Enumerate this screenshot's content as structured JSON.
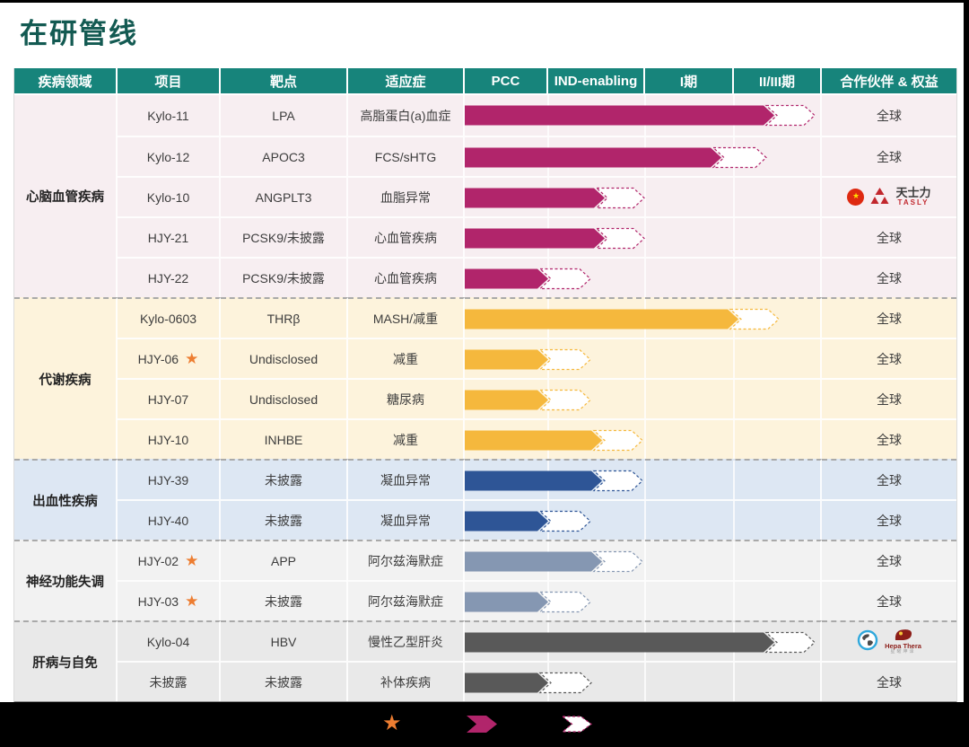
{
  "title": "在研管线",
  "theme": {
    "header_bg": "#17847b",
    "title_color": "#135a52",
    "star_color": "#ED7D31",
    "legend_arrow_color": "#b1256b",
    "bottom_bar_color": "#000000"
  },
  "table": {
    "columns": [
      "疾病领域",
      "项目",
      "靶点",
      "适应症",
      "PCC",
      "IND-enabling",
      "I期",
      "II/III期",
      "合作伙伴 & 权益"
    ],
    "groups": [
      {
        "name": "心脑血管疾病",
        "bg": "#f7eef1",
        "bar_color": "#b1256b",
        "rows": [
          {
            "project": "Kylo-11",
            "star": false,
            "target": "LPA",
            "indication": "高脂蛋白(a)血症",
            "bar": {
              "solid": 345,
              "dashed": 390
            },
            "partner": {
              "type": "text",
              "text": "全球"
            }
          },
          {
            "project": "Kylo-12",
            "star": false,
            "target": "APOC3",
            "indication": "FCS/sHTG",
            "bar": {
              "solid": 286,
              "dashed": 336
            },
            "partner": {
              "type": "text",
              "text": "全球"
            }
          },
          {
            "project": "Kylo-10",
            "star": false,
            "target": "ANGPLT3",
            "indication": "血脂异常",
            "bar": {
              "solid": 156,
              "dashed": 200
            },
            "partner": {
              "type": "tasly",
              "flag": "china-flag-icon",
              "cn": "天士力",
              "en": "TASLY"
            }
          },
          {
            "project": "HJY-21",
            "star": false,
            "target": "PCSK9/未披露",
            "indication": "心血管疾病",
            "bar": {
              "solid": 156,
              "dashed": 200
            },
            "partner": {
              "type": "text",
              "text": "全球"
            }
          },
          {
            "project": "HJY-22",
            "star": false,
            "target": "PCSK9/未披露",
            "indication": "心血管疾病",
            "bar": {
              "solid": 93,
              "dashed": 140
            },
            "partner": {
              "type": "text",
              "text": "全球"
            }
          }
        ]
      },
      {
        "name": "代谢疾病",
        "bg": "#fdf3dc",
        "bar_color": "#f5b83d",
        "rows": [
          {
            "project": "Kylo-0603",
            "star": false,
            "target": "THRβ",
            "indication": "MASH/减重",
            "bar": {
              "solid": 305,
              "dashed": 350
            },
            "partner": {
              "type": "text",
              "text": "全球"
            }
          },
          {
            "project": "HJY-06",
            "star": true,
            "target": "Undisclosed",
            "indication": "减重",
            "bar": {
              "solid": 93,
              "dashed": 140
            },
            "partner": {
              "type": "text",
              "text": "全球"
            }
          },
          {
            "project": "HJY-07",
            "star": false,
            "target": "Undisclosed",
            "indication": "糖尿病",
            "bar": {
              "solid": 93,
              "dashed": 140
            },
            "partner": {
              "type": "text",
              "text": "全球"
            }
          },
          {
            "project": "HJY-10",
            "star": false,
            "target": "INHBE",
            "indication": "减重",
            "bar": {
              "solid": 153,
              "dashed": 198
            },
            "partner": {
              "type": "text",
              "text": "全球"
            }
          }
        ]
      },
      {
        "name": "出血性疾病",
        "bg": "#dde7f3",
        "bar_color": "#2e5596",
        "rows": [
          {
            "project": "HJY-39",
            "star": false,
            "target": "未披露",
            "indication": "凝血异常",
            "bar": {
              "solid": 153,
              "dashed": 198
            },
            "partner": {
              "type": "text",
              "text": "全球"
            }
          },
          {
            "project": "HJY-40",
            "star": false,
            "target": "未披露",
            "indication": "凝血异常",
            "bar": {
              "solid": 93,
              "dashed": 140
            },
            "partner": {
              "type": "text",
              "text": "全球"
            }
          }
        ]
      },
      {
        "name": "神经功能失调",
        "bg": "#f2f2f2",
        "bar_color": "#8597b2",
        "rows": [
          {
            "project": "HJY-02",
            "star": true,
            "target": "APP",
            "indication": "阿尔兹海默症",
            "bar": {
              "solid": 153,
              "dashed": 198
            },
            "partner": {
              "type": "text",
              "text": "全球"
            }
          },
          {
            "project": "HJY-03",
            "star": true,
            "target": "未披露",
            "indication": "阿尔兹海默症",
            "bar": {
              "solid": 93,
              "dashed": 140
            },
            "partner": {
              "type": "text",
              "text": "全球"
            }
          }
        ]
      },
      {
        "name": "肝病与自免",
        "bg": "#e9e9e9",
        "bar_color": "#595959",
        "rows": [
          {
            "project": "Kylo-04",
            "star": false,
            "target": "HBV",
            "indication": "慢性乙型肝炎",
            "bar": {
              "solid": 345,
              "dashed": 390
            },
            "partner": {
              "type": "hepathera",
              "globe": "globe-icon",
              "name": "Hepa Thera",
              "cn": "星曜坤泽"
            }
          },
          {
            "project": "未披露",
            "star": false,
            "target": "未披露",
            "indication": "补体疾病",
            "bar": {
              "solid": 93,
              "dashed": 141
            },
            "partner": {
              "type": "text",
              "text": "全球"
            }
          }
        ]
      }
    ]
  },
  "legend": {
    "star_glyph": "★",
    "items": [
      "star-icon",
      "solid-arrow-icon",
      "dashed-arrow-icon"
    ]
  },
  "chart_data": {
    "type": "bar",
    "title": "在研管线",
    "stage_axis": [
      "PCC",
      "IND-enabling",
      "I期",
      "II/III期"
    ],
    "stage_units_note": "0=start of PCC, 1=PCC done, 2=IND-enabling done, 3=Phase I done, 4=Phase II/III done; solid = achieved progress, dashed = planned/ongoing extension",
    "rows": [
      {
        "project": "Kylo-11",
        "group": "心脑血管疾病",
        "solid_end_stage": 3.45,
        "dashed_end_stage": 3.92
      },
      {
        "project": "Kylo-12",
        "group": "心脑血管疾病",
        "solid_end_stage": 2.86,
        "dashed_end_stage": 3.37
      },
      {
        "project": "Kylo-10",
        "group": "心脑血管疾病",
        "solid_end_stage": 1.58,
        "dashed_end_stage": 2.0
      },
      {
        "project": "HJY-21",
        "group": "心脑血管疾病",
        "solid_end_stage": 1.58,
        "dashed_end_stage": 2.0
      },
      {
        "project": "HJY-22",
        "group": "心脑血管疾病",
        "solid_end_stage": 1.0,
        "dashed_end_stage": 1.44
      },
      {
        "project": "Kylo-0603",
        "group": "代谢疾病",
        "solid_end_stage": 3.05,
        "dashed_end_stage": 3.51
      },
      {
        "project": "HJY-06",
        "group": "代谢疾病",
        "solid_end_stage": 1.0,
        "dashed_end_stage": 1.44
      },
      {
        "project": "HJY-07",
        "group": "代谢疾病",
        "solid_end_stage": 1.0,
        "dashed_end_stage": 1.44
      },
      {
        "project": "HJY-10",
        "group": "代谢疾病",
        "solid_end_stage": 1.56,
        "dashed_end_stage": 1.97
      },
      {
        "project": "HJY-39",
        "group": "出血性疾病",
        "solid_end_stage": 1.56,
        "dashed_end_stage": 1.97
      },
      {
        "project": "HJY-40",
        "group": "出血性疾病",
        "solid_end_stage": 1.0,
        "dashed_end_stage": 1.44
      },
      {
        "project": "HJY-02",
        "group": "神经功能失调",
        "solid_end_stage": 1.56,
        "dashed_end_stage": 1.97
      },
      {
        "project": "HJY-03",
        "group": "神经功能失调",
        "solid_end_stage": 1.0,
        "dashed_end_stage": 1.44
      },
      {
        "project": "Kylo-04",
        "group": "肝病与自免",
        "solid_end_stage": 3.45,
        "dashed_end_stage": 3.92
      },
      {
        "project": "未披露",
        "group": "肝病与自免",
        "solid_end_stage": 1.0,
        "dashed_end_stage": 1.45
      }
    ]
  }
}
